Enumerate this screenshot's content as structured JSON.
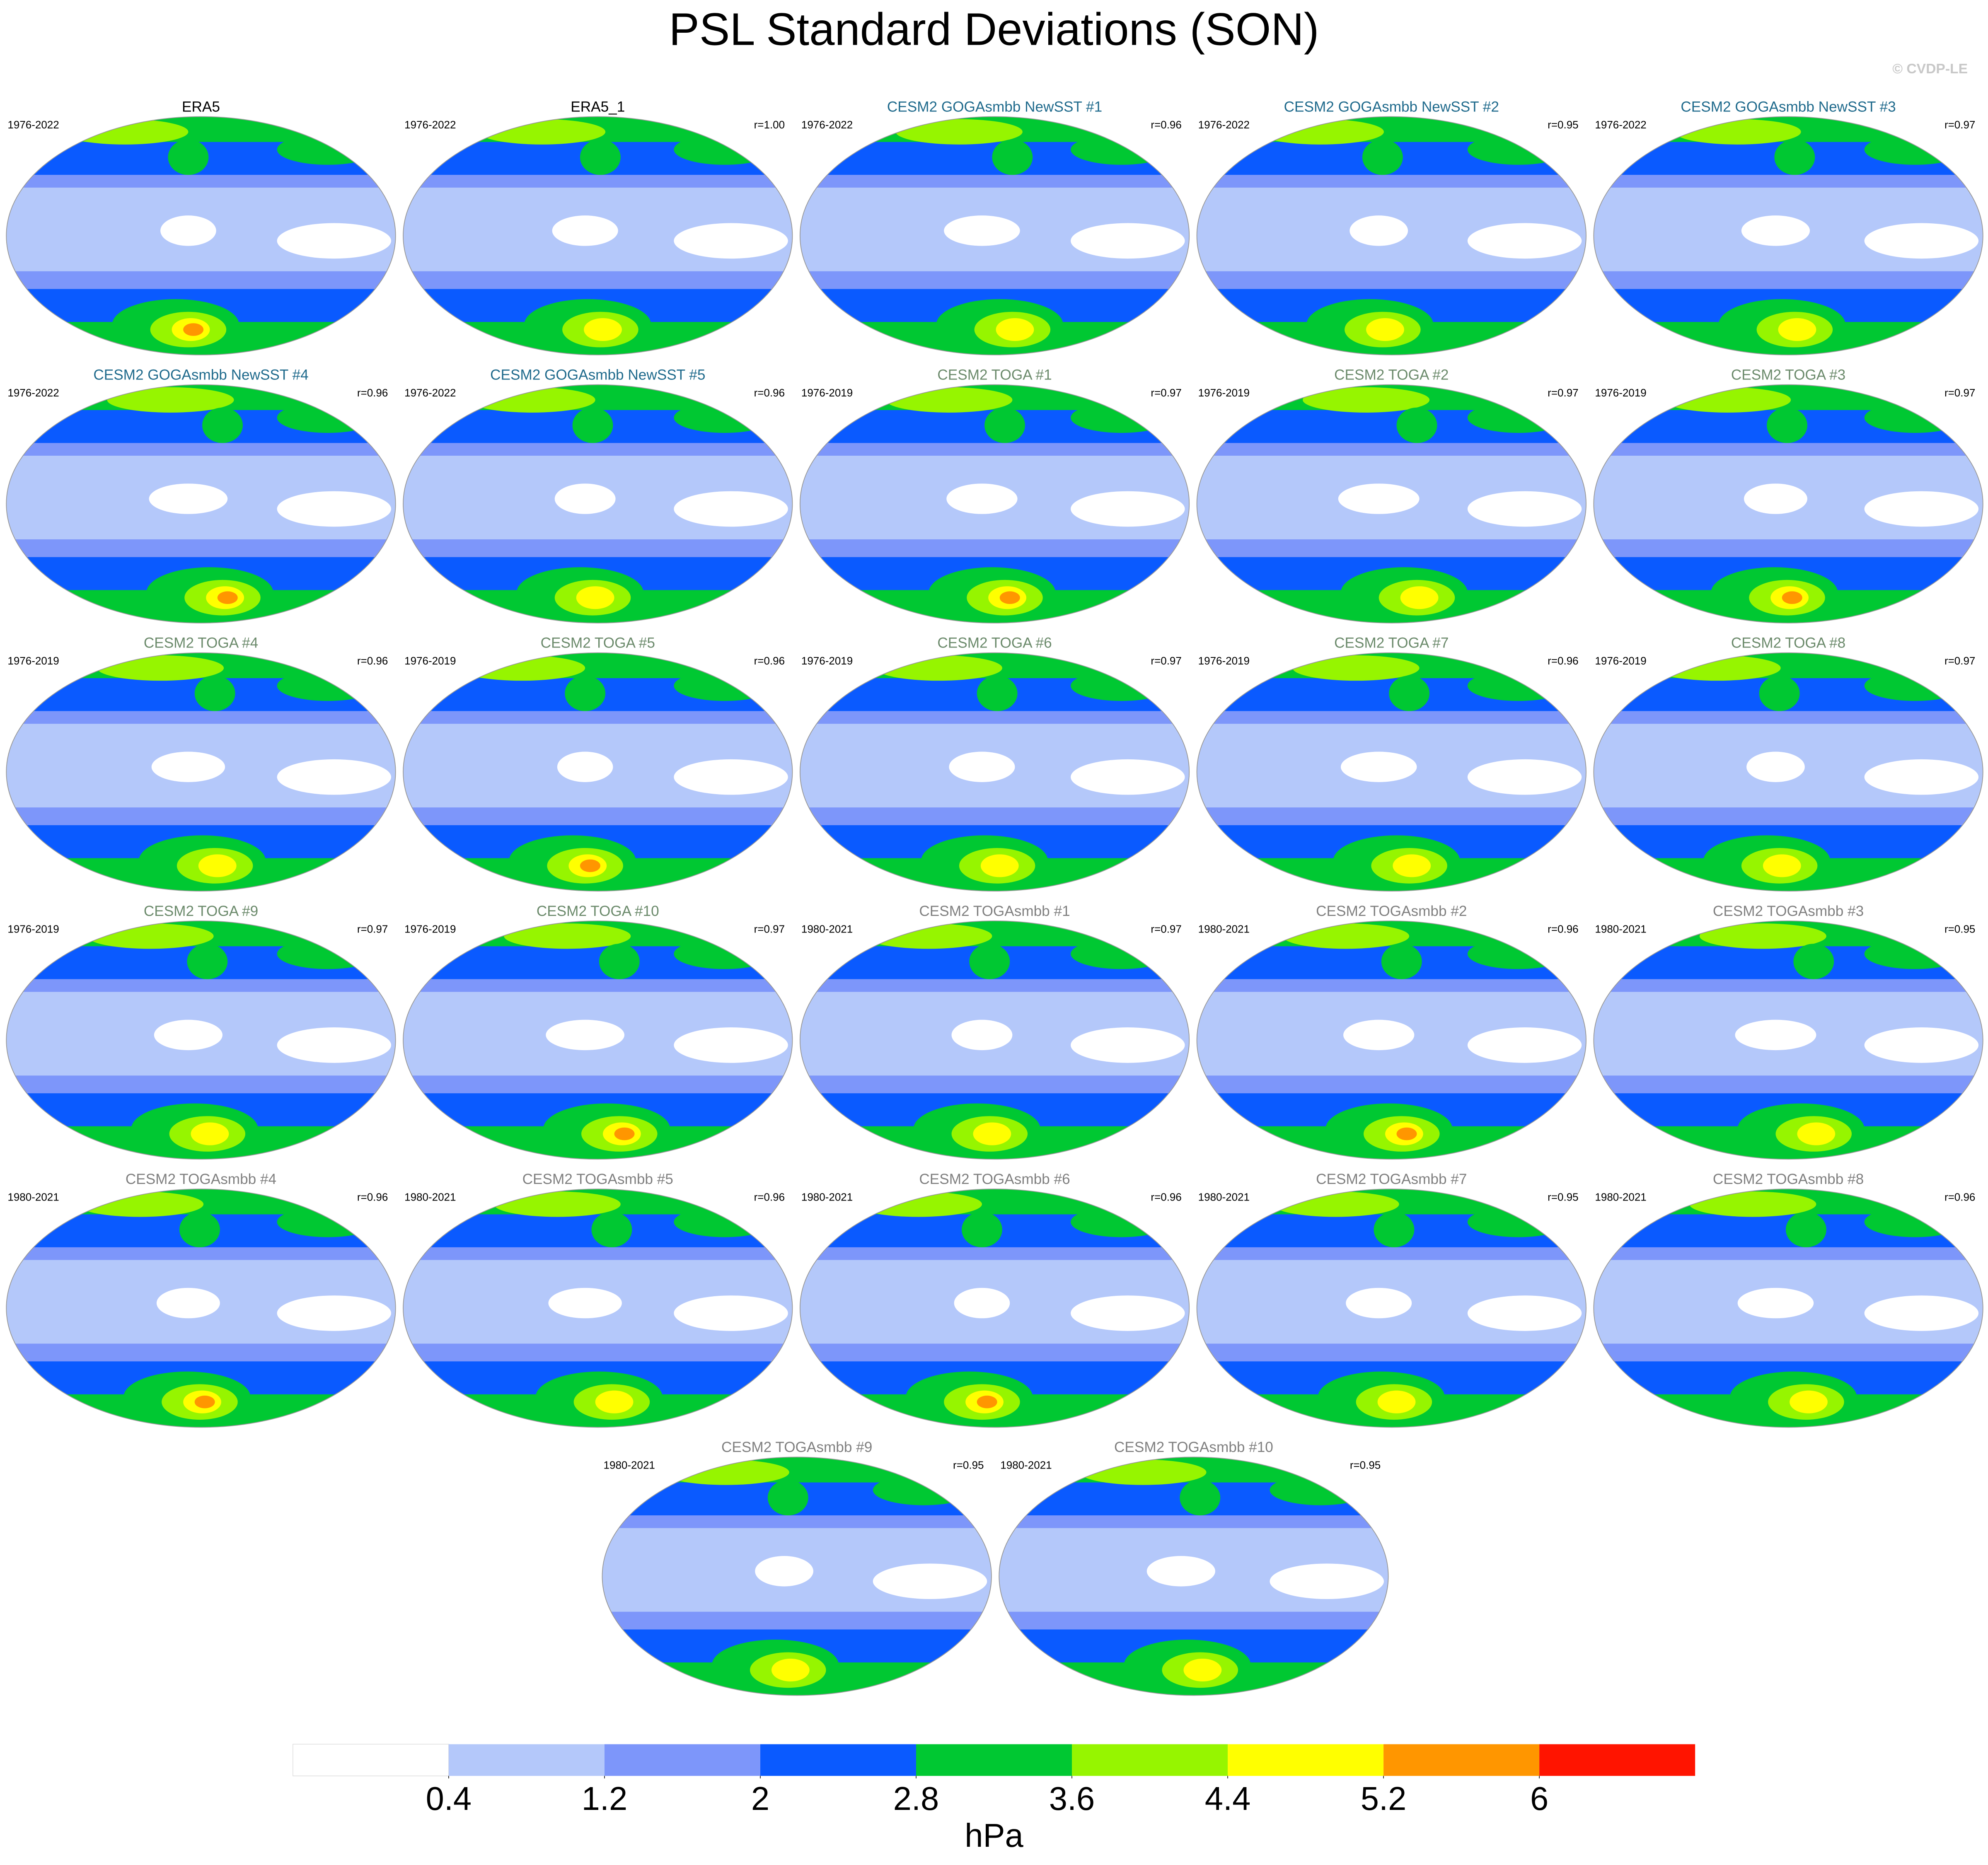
{
  "title": "PSL Standard Deviations (SON)",
  "credit": "© CVDP-LE",
  "panels": [
    {
      "title": "ERA5",
      "color": "#000000",
      "period": "1976-2022"
    },
    {
      "title": "ERA5_1",
      "color": "#000000",
      "period": "1976-2022",
      "r": "r=1.00"
    },
    {
      "title": "CESM2 GOGAsmbb NewSST #1",
      "color": "#1f6a8c",
      "period": "1976-2022",
      "r": "r=0.96"
    },
    {
      "title": "CESM2 GOGAsmbb NewSST #2",
      "color": "#1f6a8c",
      "period": "1976-2022",
      "r": "r=0.95"
    },
    {
      "title": "CESM2 GOGAsmbb NewSST #3",
      "color": "#1f6a8c",
      "period": "1976-2022",
      "r": "r=0.97"
    },
    {
      "title": "CESM2 GOGAsmbb NewSST #4",
      "color": "#1f6a8c",
      "period": "1976-2022",
      "r": "r=0.96"
    },
    {
      "title": "CESM2 GOGAsmbb NewSST #5",
      "color": "#1f6a8c",
      "period": "1976-2022",
      "r": "r=0.96"
    },
    {
      "title": "CESM2 TOGA #1",
      "color": "#6b8a6b",
      "period": "1976-2019",
      "r": "r=0.97"
    },
    {
      "title": "CESM2 TOGA #2",
      "color": "#6b8a6b",
      "period": "1976-2019",
      "r": "r=0.97"
    },
    {
      "title": "CESM2 TOGA #3",
      "color": "#6b8a6b",
      "period": "1976-2019",
      "r": "r=0.97"
    },
    {
      "title": "CESM2 TOGA #4",
      "color": "#6b8a6b",
      "period": "1976-2019",
      "r": "r=0.96"
    },
    {
      "title": "CESM2 TOGA #5",
      "color": "#6b8a6b",
      "period": "1976-2019",
      "r": "r=0.96"
    },
    {
      "title": "CESM2 TOGA #6",
      "color": "#6b8a6b",
      "period": "1976-2019",
      "r": "r=0.97"
    },
    {
      "title": "CESM2 TOGA #7",
      "color": "#6b8a6b",
      "period": "1976-2019",
      "r": "r=0.96"
    },
    {
      "title": "CESM2 TOGA #8",
      "color": "#6b8a6b",
      "period": "1976-2019",
      "r": "r=0.97"
    },
    {
      "title": "CESM2 TOGA #9",
      "color": "#6b8a6b",
      "period": "1976-2019",
      "r": "r=0.97"
    },
    {
      "title": "CESM2 TOGA #10",
      "color": "#6b8a6b",
      "period": "1976-2019",
      "r": "r=0.97"
    },
    {
      "title": "CESM2 TOGAsmbb #1",
      "color": "#808080",
      "period": "1980-2021",
      "r": "r=0.97"
    },
    {
      "title": "CESM2 TOGAsmbb #2",
      "color": "#808080",
      "period": "1980-2021",
      "r": "r=0.96"
    },
    {
      "title": "CESM2 TOGAsmbb #3",
      "color": "#808080",
      "period": "1980-2021",
      "r": "r=0.95"
    },
    {
      "title": "CESM2 TOGAsmbb #4",
      "color": "#808080",
      "period": "1980-2021",
      "r": "r=0.96"
    },
    {
      "title": "CESM2 TOGAsmbb #5",
      "color": "#808080",
      "period": "1980-2021",
      "r": "r=0.96"
    },
    {
      "title": "CESM2 TOGAsmbb #6",
      "color": "#808080",
      "period": "1980-2021",
      "r": "r=0.96"
    },
    {
      "title": "CESM2 TOGAsmbb #7",
      "color": "#808080",
      "period": "1980-2021",
      "r": "r=0.95"
    },
    {
      "title": "CESM2 TOGAsmbb #8",
      "color": "#808080",
      "period": "1980-2021",
      "r": "r=0.96"
    },
    {
      "title": "CESM2 TOGAsmbb #9",
      "color": "#808080",
      "period": "1980-2021",
      "r": "r=0.95"
    },
    {
      "title": "CESM2 TOGAsmbb #10",
      "color": "#808080",
      "period": "1980-2021",
      "r": "r=0.95"
    }
  ],
  "colorbar": {
    "ticks": [
      0.4,
      1.2,
      2,
      2.8,
      3.6,
      4.4,
      5.2,
      6
    ],
    "colors": [
      "#ffffff",
      "#b4c8fa",
      "#7d96fa",
      "#0a5aff",
      "#00c832",
      "#96f500",
      "#ffff00",
      "#ff9600",
      "#ff1400"
    ],
    "label": "hPa"
  }
}
